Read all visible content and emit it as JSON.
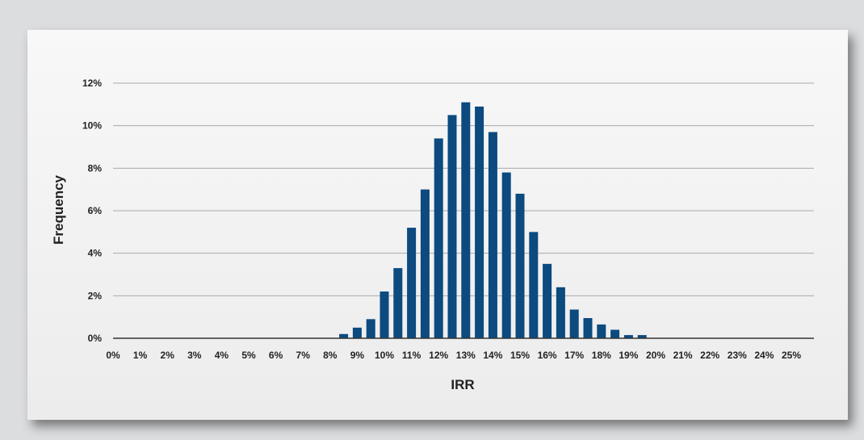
{
  "chart_data": {
    "type": "bar",
    "xlabel": "IRR",
    "ylabel": "Frequency",
    "ylim": [
      0,
      12
    ],
    "yticks": [
      "0%",
      "2%",
      "4%",
      "6%",
      "8%",
      "10%",
      "12%"
    ],
    "xticks": [
      "0%",
      "1%",
      "2%",
      "3%",
      "4%",
      "5%",
      "6%",
      "7%",
      "8%",
      "9%",
      "10%",
      "11%",
      "12%",
      "13%",
      "14%",
      "15%",
      "16%",
      "17%",
      "18%",
      "19%",
      "20%",
      "21%",
      "22%",
      "23%",
      "24%",
      "25%"
    ],
    "grid": true,
    "bar_color": "#0c4a7f",
    "series": [
      {
        "x": [
          8.5,
          9.0,
          9.5,
          10.0,
          10.5,
          11.0,
          11.5,
          12.0,
          12.5,
          13.0,
          13.5,
          14.0,
          14.5,
          15.0,
          15.5,
          16.0,
          16.5,
          17.0,
          17.5,
          18.0,
          18.5,
          19.0,
          19.5
        ],
        "values": [
          0.2,
          0.5,
          0.9,
          2.2,
          3.3,
          5.2,
          7.0,
          9.4,
          10.5,
          11.1,
          10.9,
          9.7,
          7.8,
          6.8,
          5.0,
          3.5,
          2.4,
          1.35,
          0.95,
          0.65,
          0.4,
          0.15,
          0.15
        ]
      }
    ]
  }
}
